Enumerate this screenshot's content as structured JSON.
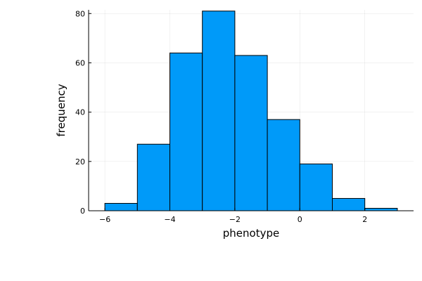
{
  "chart_data": {
    "type": "bar",
    "subtype": "histogram",
    "bins": [
      {
        "start": -6,
        "end": -5,
        "value": 3
      },
      {
        "start": -5,
        "end": -4,
        "value": 27
      },
      {
        "start": -4,
        "end": -3,
        "value": 64
      },
      {
        "start": -3,
        "end": -2,
        "value": 81
      },
      {
        "start": -2,
        "end": -1,
        "value": 63
      },
      {
        "start": -1,
        "end": 0,
        "value": 37
      },
      {
        "start": 0,
        "end": 1,
        "value": 19
      },
      {
        "start": 1,
        "end": 2,
        "value": 5
      },
      {
        "start": 2,
        "end": 3,
        "value": 1
      }
    ],
    "xlabel": "phenotype",
    "ylabel": "frequency",
    "xlim": [
      -6.5,
      3.5
    ],
    "ylim": [
      0,
      81.5
    ],
    "xticks": [
      -6,
      -4,
      -2,
      0,
      2
    ],
    "xtick_labels": [
      "−6",
      "−4",
      "−2",
      "0",
      "2"
    ],
    "yticks": [
      0,
      20,
      40,
      60,
      80
    ],
    "ytick_labels": [
      "0",
      "20",
      "40",
      "60",
      "80"
    ],
    "grid": true,
    "legend": "none",
    "bar_color": "#009af9",
    "edge_color": "#000000"
  }
}
